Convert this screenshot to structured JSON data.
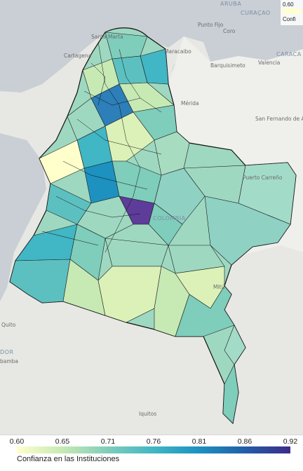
{
  "map_labels": [
    {
      "id": "aruba",
      "text": "ARUBA"
    },
    {
      "id": "curacao",
      "text": "CURAÇAO"
    },
    {
      "id": "punto-fijo",
      "text": "Punto Fijo"
    },
    {
      "id": "coro",
      "text": "Coro"
    },
    {
      "id": "santa-marta",
      "text": "Santa Marta"
    },
    {
      "id": "cartagena",
      "text": "Cartagena"
    },
    {
      "id": "maracaibo",
      "text": "Maracaibo"
    },
    {
      "id": "barquisimeto",
      "text": "Barquisimeto"
    },
    {
      "id": "valencia",
      "text": "Valencia"
    },
    {
      "id": "caracas",
      "text": "CARACA"
    },
    {
      "id": "merida",
      "text": "Mérida"
    },
    {
      "id": "san-fernando-de-apure",
      "text": "San Fernando de Apure"
    },
    {
      "id": "puerto-carreno",
      "text": "Puerto Carreño"
    },
    {
      "id": "colombia",
      "text": "COLOMBIA"
    },
    {
      "id": "mitu",
      "text": "Mitú"
    },
    {
      "id": "quito",
      "text": "Quito"
    },
    {
      "id": "ecuador",
      "text": "DOR"
    },
    {
      "id": "riobamba",
      "text": "bamba"
    },
    {
      "id": "iquitos",
      "text": "Iquitos"
    }
  ],
  "legend_top": {
    "min": "0.60",
    "label": "Confi"
  },
  "colorbar": {
    "title": "Confianza en las Instituciones",
    "ticks": [
      "0.60",
      "0.65",
      "0.71",
      "0.76",
      "0.81",
      "0.86",
      "0.92"
    ],
    "range": [
      0.6,
      0.92
    ],
    "colors": [
      "#ffffcc",
      "#c7e9b4",
      "#7fcdbb",
      "#41b6c4",
      "#1d91c0",
      "#225ea8",
      "#3d2b8a"
    ]
  },
  "chart_data": {
    "type": "choropleth",
    "title": "",
    "legend_title": "Confianza en las Instituciones",
    "colorscale_range": [
      0.6,
      0.92
    ],
    "colorbar_ticks": [
      0.6,
      0.65,
      0.71,
      0.76,
      0.81,
      0.86,
      0.92
    ],
    "regions_shown": "Colombian municipalities"
  }
}
